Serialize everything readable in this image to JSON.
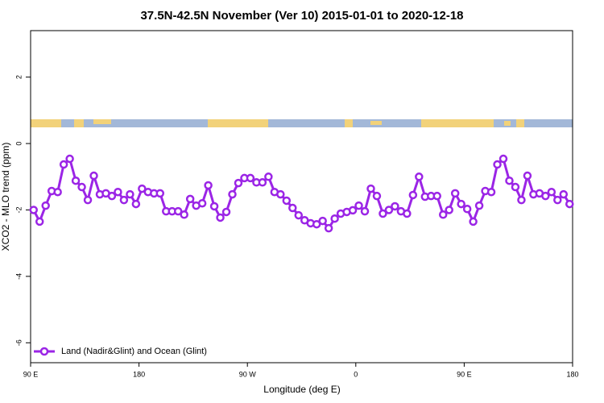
{
  "chart_data": {
    "type": "line",
    "title": "37.5N-42.5N November (Ver 10)   2015-01-01 to 2020-12-18",
    "x_label": "Longitude (deg E)",
    "y_label": "XCO2 - MLO trend (ppm)",
    "xlim": [
      90,
      540
    ],
    "ylim": [
      -6.6,
      3.4
    ],
    "xticks": [
      {
        "value": 90,
        "label": "90 E"
      },
      {
        "value": 180,
        "label": "180"
      },
      {
        "value": 270,
        "label": "90 W"
      },
      {
        "value": 360,
        "label": "0"
      },
      {
        "value": 450,
        "label": "90 E"
      },
      {
        "value": 540,
        "label": "180"
      }
    ],
    "yticks": [
      -6,
      -4,
      -2,
      0,
      2
    ],
    "legend_position": "bottom-left",
    "series": [
      {
        "name": "Land (Nadir&Glint) and Ocean (Glint)",
        "color": "#9b25e6",
        "x": [
          92.5,
          97.5,
          102.5,
          107.5,
          112.5,
          117.5,
          122.5,
          127.5,
          132.5,
          137.5,
          142.5,
          147.5,
          152.5,
          157.5,
          162.5,
          167.5,
          172.5,
          177.5,
          182.5,
          187.5,
          192.5,
          197.5,
          202.5,
          207.5,
          212.5,
          217.5,
          222.5,
          227.5,
          232.5,
          237.5,
          242.5,
          247.5,
          252.5,
          257.5,
          262.5,
          267.5,
          272.5,
          277.5,
          282.5,
          287.5,
          292.5,
          297.5,
          302.5,
          307.5,
          312.5,
          317.5,
          322.5,
          327.5,
          332.5,
          337.5,
          342.5,
          347.5,
          352.5,
          357.5,
          362.5,
          367.5,
          372.5,
          377.5,
          382.5,
          387.5,
          392.5,
          397.5,
          402.5,
          407.5,
          412.5,
          417.5,
          422.5,
          427.5,
          432.5,
          437.5,
          442.5,
          447.5,
          452.5,
          457.5,
          462.5,
          467.5,
          472.5,
          477.5,
          482.5,
          487.5,
          492.5,
          497.5,
          502.5,
          507.5,
          512.5,
          517.5,
          522.5,
          527.5,
          532.5,
          537.5
        ],
        "values": [
          -2.0,
          -2.35,
          -1.87,
          -1.43,
          -1.46,
          -0.63,
          -0.46,
          -1.12,
          -1.31,
          -1.7,
          -0.97,
          -1.53,
          -1.5,
          -1.58,
          -1.46,
          -1.7,
          -1.53,
          -1.82,
          -1.36,
          -1.46,
          -1.5,
          -1.5,
          -2.04,
          -2.04,
          -2.04,
          -2.14,
          -1.67,
          -1.87,
          -1.8,
          -1.26,
          -1.89,
          -2.23,
          -2.06,
          -1.53,
          -1.19,
          -1.04,
          -1.04,
          -1.17,
          -1.17,
          -1.0,
          -1.46,
          -1.53,
          -1.72,
          -1.94,
          -2.16,
          -2.31,
          -2.4,
          -2.43,
          -2.33,
          -2.55,
          -2.26,
          -2.11,
          -2.06,
          -2.01,
          -1.87,
          -2.04,
          -1.36,
          -1.58,
          -2.11,
          -2.0,
          -1.89,
          -2.04,
          -2.11,
          -1.55,
          -1.0,
          -1.6,
          -1.58,
          -1.58,
          -2.14,
          -2.0,
          -1.5,
          -1.82,
          -1.97,
          -2.35,
          -1.87,
          -1.43,
          -1.46,
          -0.63,
          -0.46,
          -1.12,
          -1.31,
          -1.7,
          -0.97,
          -1.53,
          -1.5,
          -1.58,
          -1.46,
          -1.7,
          -1.53,
          -1.82
        ]
      }
    ]
  }
}
